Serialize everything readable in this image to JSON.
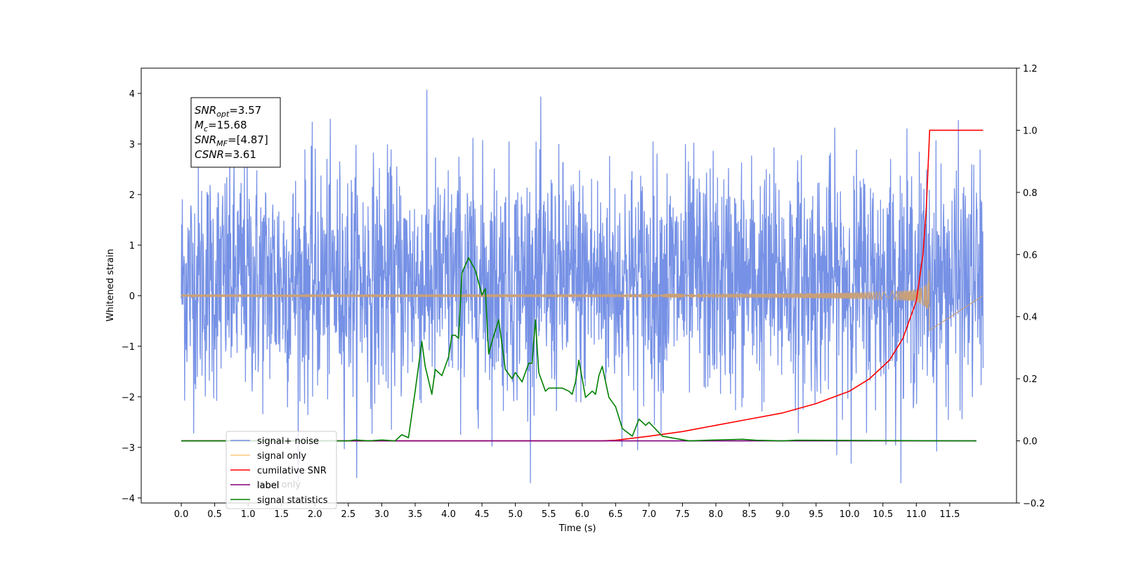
{
  "chart_data": {
    "type": "line",
    "title": "",
    "xlabel": "Time (s)",
    "ylabel": "Whitened strain",
    "xlim": [
      -0.6,
      12.5
    ],
    "ylim": [
      -4.1,
      4.5
    ],
    "y2lim": [
      -0.2,
      1.2
    ],
    "x_ticks": [
      "0.0",
      "0.5",
      "1.0",
      "1.5",
      "2.0",
      "2.5",
      "3.0",
      "3.5",
      "4.0",
      "4.5",
      "5.0",
      "5.5",
      "6.0",
      "6.5",
      "7.0",
      "7.5",
      "8.0",
      "8.5",
      "9.0",
      "9.5",
      "10.0",
      "10.5",
      "11.0",
      "11.5"
    ],
    "y_ticks": [
      "4",
      "3",
      "2",
      "1",
      "0",
      "−1",
      "−2",
      "−3",
      "−4"
    ],
    "y2_ticks": [
      "1.2",
      "1.0",
      "0.8",
      "0.6",
      "0.4",
      "0.2",
      "0.0",
      "−0.2"
    ],
    "grid": false,
    "legend_placement": "lower-left",
    "annotation": {
      "lines": [
        {
          "label": "SNR",
          "sub": "opt",
          "value": "=3.57"
        },
        {
          "label": "M",
          "sub": "c",
          "value": "=15.68"
        },
        {
          "label": "SNR",
          "sub": "MF",
          "value": "=[4.87]"
        },
        {
          "label": "CSNR",
          "sub": "",
          "value": "=3.61"
        }
      ]
    },
    "series": [
      {
        "name": "signal+ noise",
        "color": "#7691e5",
        "axis": "left",
        "kind": "noise",
        "x_range": [
          0.0,
          12.0
        ],
        "y_range_typical": [
          -2.0,
          2.6
        ],
        "y_peak": [
          -3.7,
          4.1
        ]
      },
      {
        "name": "signal only",
        "color": "#c8a07a",
        "axis": "left",
        "kind": "chirp",
        "x_range": [
          0.0,
          11.2
        ],
        "peak_time": 11.2,
        "peak_amplitude": 0.75
      },
      {
        "name": "cumilative SNR",
        "color": "#ff0000",
        "axis": "right",
        "kind": "line",
        "x": [
          0.0,
          6.3,
          6.5,
          7.0,
          7.5,
          8.0,
          8.5,
          9.0,
          9.5,
          10.0,
          10.3,
          10.6,
          10.8,
          11.0,
          11.1,
          11.15,
          11.2,
          11.3,
          12.0
        ],
        "y": [
          0.0,
          0.0,
          0.002,
          0.015,
          0.03,
          0.05,
          0.07,
          0.09,
          0.12,
          0.16,
          0.2,
          0.26,
          0.33,
          0.45,
          0.6,
          0.75,
          1.0,
          1.0,
          1.0
        ]
      },
      {
        "name": "label",
        "color": "#800080",
        "axis": "right",
        "kind": "line",
        "x": [
          0.0,
          11.9
        ],
        "y": [
          0.0,
          0.0
        ]
      },
      {
        "name": "signal statistics",
        "color": "#008000",
        "axis": "right",
        "kind": "line",
        "x": [
          0.0,
          2.5,
          2.6,
          2.8,
          3.0,
          3.2,
          3.3,
          3.4,
          3.5,
          3.6,
          3.65,
          3.75,
          3.8,
          3.9,
          4.0,
          4.05,
          4.1,
          4.15,
          4.2,
          4.3,
          4.4,
          4.5,
          4.55,
          4.6,
          4.65,
          4.75,
          4.85,
          4.95,
          5.0,
          5.1,
          5.2,
          5.25,
          5.3,
          5.35,
          5.45,
          5.5,
          5.6,
          5.7,
          5.8,
          5.85,
          5.9,
          5.95,
          6.05,
          6.15,
          6.2,
          6.25,
          6.3,
          6.4,
          6.5,
          6.6,
          6.75,
          6.85,
          6.95,
          7.0,
          7.2,
          7.6,
          8.0,
          8.4,
          8.6,
          9.0,
          9.2,
          11.9
        ],
        "y": [
          0.0,
          0.0,
          0.003,
          0.0,
          0.003,
          0.0,
          0.02,
          0.01,
          0.16,
          0.32,
          0.24,
          0.15,
          0.23,
          0.21,
          0.27,
          0.34,
          0.34,
          0.33,
          0.54,
          0.59,
          0.55,
          0.47,
          0.49,
          0.28,
          0.32,
          0.39,
          0.23,
          0.2,
          0.22,
          0.19,
          0.25,
          0.25,
          0.39,
          0.22,
          0.16,
          0.17,
          0.17,
          0.17,
          0.16,
          0.15,
          0.19,
          0.26,
          0.14,
          0.16,
          0.15,
          0.21,
          0.24,
          0.14,
          0.11,
          0.04,
          0.015,
          0.07,
          0.05,
          0.06,
          0.015,
          0.0,
          0.003,
          0.005,
          0.002,
          0.0,
          0.002,
          0.0
        ]
      }
    ],
    "legend": [
      {
        "label": "signal+ noise",
        "color": "#7691e5"
      },
      {
        "label": "signal only",
        "color": "#ffc97a"
      },
      {
        "label": "cumilative SNR",
        "color": "#ff0000"
      },
      {
        "label": "label",
        "color": "#800080"
      },
      {
        "label": "signal statistics",
        "color": "#008000"
      }
    ],
    "legend_hidden_text": [
      "label only"
    ]
  }
}
